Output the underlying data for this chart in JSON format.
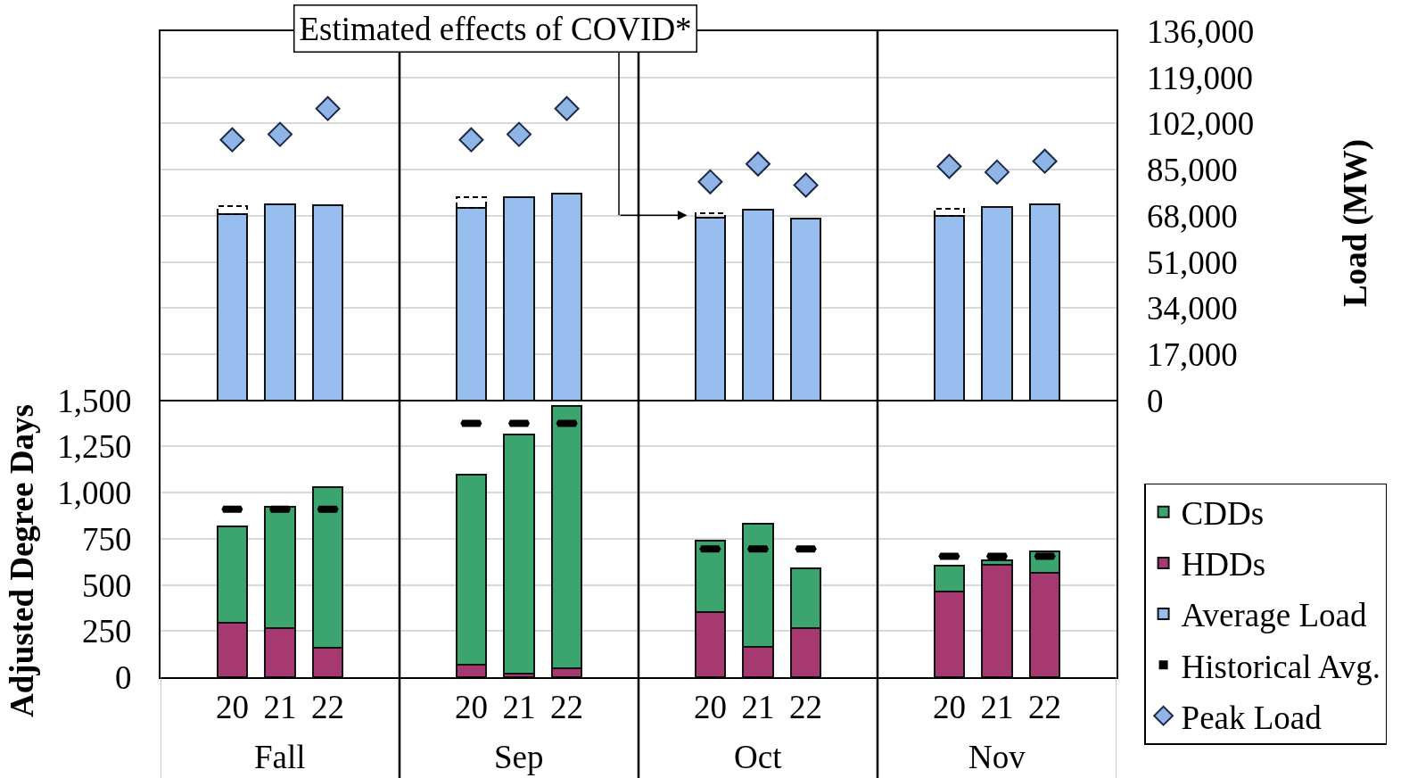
{
  "chart_data": {
    "type": "bar",
    "stacked": true,
    "categories": [
      null,
      "20",
      "21",
      "22",
      null,
      null,
      "20",
      "21",
      "22",
      null,
      null,
      "20",
      "21",
      "22",
      null,
      null,
      "20",
      "21",
      "22",
      null
    ],
    "ylabel": "Adjusted Degree Days",
    "y2label": "Load (MW)",
    "ylim": [
      0,
      3500
    ],
    "yticks": [
      0,
      250,
      500,
      750,
      {
        "value": 1000,
        "label": "1,000"
      },
      {
        "value": 1250,
        "label": "1,250"
      },
      {
        "value": 1500,
        "label": "1,500"
      }
    ],
    "y2lim": [
      -102000,
      136000
    ],
    "y2ticks": [
      0,
      {
        "value": 17000,
        "label": "17,000"
      },
      {
        "value": 34000,
        "label": "34,000"
      },
      {
        "value": 51000,
        "label": "51,000"
      },
      {
        "value": 68000,
        "label": "68,000"
      },
      {
        "value": 85000,
        "label": "85,000"
      },
      {
        "value": 102000,
        "label": "102,000"
      },
      {
        "value": 119000,
        "label": "119,000"
      },
      {
        "value": 136000,
        "label": "136,000"
      }
    ],
    "series": [
      {
        "name": "HDDs",
        "color": "#a6396f",
        "values": [
          null,
          295,
          265,
          160,
          null,
          null,
          70,
          20,
          50,
          null,
          null,
          355,
          165,
          265,
          null,
          null,
          465,
          610,
          565,
          null
        ]
      },
      {
        "name": "CDDs",
        "color": "#3ca46e",
        "values": [
          null,
          520,
          660,
          870,
          null,
          null,
          1025,
          1295,
          1420,
          null,
          null,
          385,
          665,
          325,
          null,
          null,
          140,
          25,
          115,
          null
        ]
      },
      {
        "name": "Average Load",
        "axis": "y2",
        "color": "#98bef0",
        "values": [
          null,
          68600,
          72300,
          71800,
          null,
          null,
          70800,
          74900,
          76100,
          null,
          null,
          67400,
          70400,
          67100,
          null,
          null,
          68100,
          71200,
          72100,
          null
        ]
      },
      {
        "axis": "y2",
        "color": "#000000",
        "line_style": "dashed",
        "values": [
          null,
          3000,
          null,
          null,
          null,
          null,
          4000,
          null,
          null,
          null,
          null,
          1600,
          null,
          null,
          null,
          null,
          2600,
          null,
          null,
          null
        ]
      },
      {
        "name": "Historical Avg.",
        "type": "scatter",
        "color": "#000000",
        "values": [
          null,
          910,
          910,
          910,
          null,
          null,
          1375,
          1375,
          1375,
          null,
          null,
          695,
          695,
          695,
          null,
          null,
          655,
          655,
          655,
          null
        ]
      },
      {
        "name": "Peak Load",
        "type": "scatter",
        "axis": "y2",
        "marker": "diamond",
        "color": "#8fb4e6",
        "values": [
          null,
          96000,
          98000,
          107500,
          null,
          null,
          96000,
          98000,
          107500,
          null,
          null,
          80500,
          87100,
          79300,
          null,
          null,
          86200,
          84100,
          88100,
          null
        ]
      }
    ],
    "annotations": [
      "Estimated effects of COVID*",
      "Fall",
      "Sep",
      "Oct",
      "Nov"
    ],
    "grid": "y",
    "legend": "bottom right"
  }
}
